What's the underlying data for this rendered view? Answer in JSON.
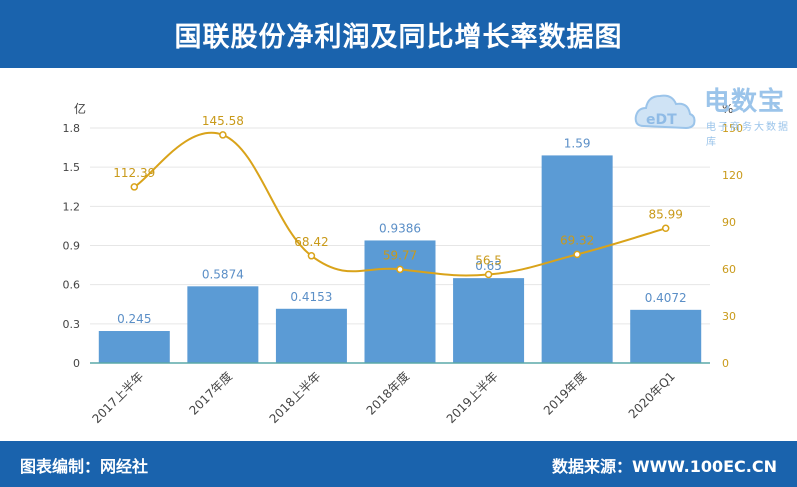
{
  "header": {
    "title": "国联股份净利润及同比增长率数据图"
  },
  "footer": {
    "left_text": "图表编制：网经社",
    "right_text": "数据来源：WWW.100EC.CN"
  },
  "watermark": {
    "main": "电数宝",
    "sub": "电子商务大数据库",
    "logo_text": "eDT"
  },
  "colors": {
    "header_bg": "#1a63ad",
    "bar": "#5b9bd5",
    "line": "#d9a31a",
    "bar_label": "#5b8fc7",
    "line_label": "#c99a1a"
  },
  "chart_data": {
    "type": "bar",
    "title": "国联股份净利润及同比增长率数据图",
    "categories": [
      "2017上半年",
      "2017年度",
      "2018上半年",
      "2018年度",
      "2019上半年",
      "2019年度",
      "2020年Q1"
    ],
    "series": [
      {
        "name": "净利润",
        "type": "bar",
        "axis": "left",
        "values": [
          0.245,
          0.5874,
          0.4153,
          0.9386,
          0.65,
          1.59,
          0.4072
        ],
        "labels": [
          "0.245",
          "0.5874",
          "0.4153",
          "0.9386",
          "0.65",
          "1.59",
          "0.4072"
        ]
      },
      {
        "name": "同比增长率",
        "type": "line",
        "axis": "right",
        "values": [
          112.39,
          145.58,
          68.42,
          59.77,
          56.5,
          69.32,
          85.99
        ],
        "labels": [
          "112.39",
          "145.58",
          "68.42",
          "59.77",
          "56.5",
          "69.32",
          "85.99"
        ]
      }
    ],
    "ylabel": "亿",
    "ylabel_right": "%",
    "ylim": [
      0,
      1.8
    ],
    "yticks": [
      "0",
      "0.3",
      "0.6",
      "0.9",
      "1.2",
      "1.5",
      "1.8"
    ],
    "ylim_right": [
      0,
      150
    ],
    "yticks_right": [
      "0",
      "30",
      "60",
      "90",
      "120",
      "150"
    ],
    "yticks_right_values": [
      0,
      30,
      60,
      90,
      120,
      150
    ],
    "grid": true
  }
}
